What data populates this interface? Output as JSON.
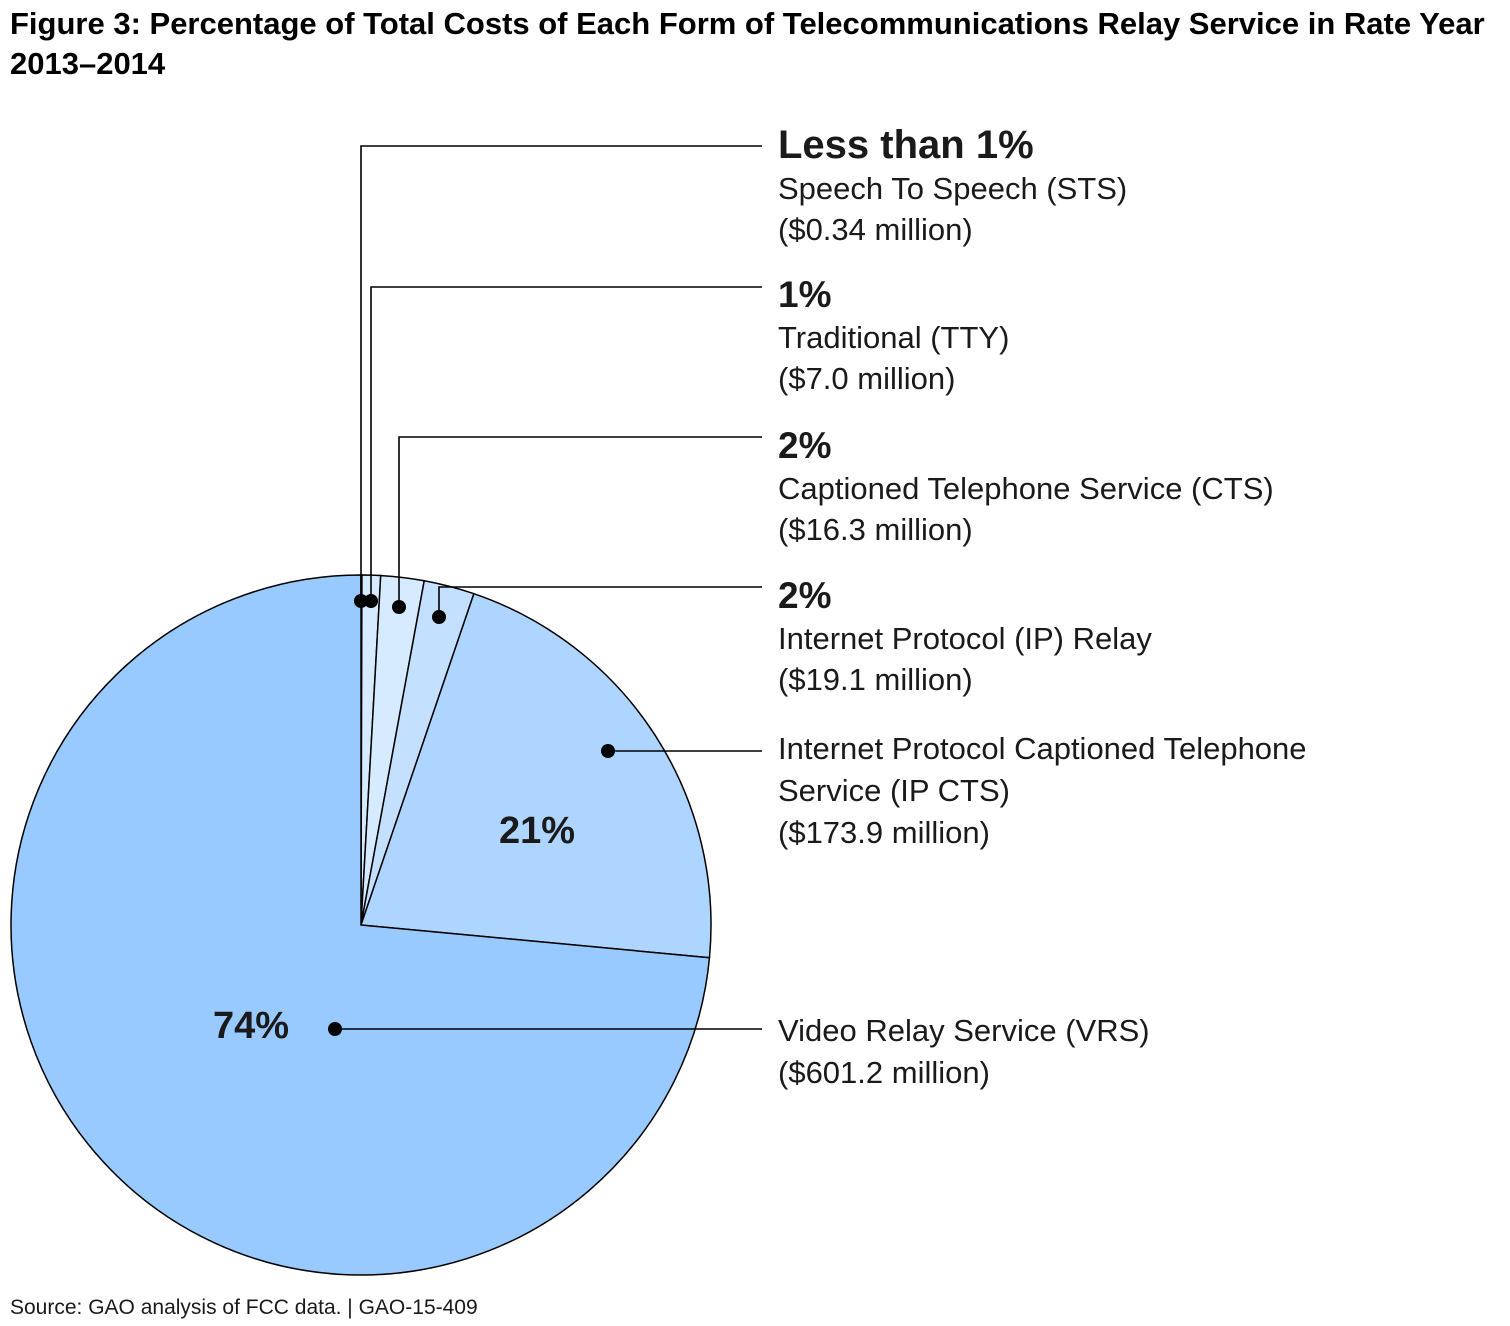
{
  "title": "Figure 3: Percentage of Total Costs of Each Form of Telecommunications Relay Service in Rate Year 2013–2014",
  "source": "Source: GAO analysis of FCC data.  |  GAO-15-409",
  "chart_data": {
    "type": "pie",
    "title": "Figure 3: Percentage of Total Costs of Each Form of Telecommunications Relay Service in Rate Year 2013–2014",
    "start_angle": "12 o'clock, clockwise",
    "slices": [
      {
        "name": "Speech To Speech (STS)",
        "value": 0.34,
        "amount_label": "($0.34 million)",
        "percent_label": "Less than 1%",
        "color": "#d6ebff"
      },
      {
        "name": "Traditional (TTY)",
        "value": 7.0,
        "amount_label": "($7.0 million)",
        "percent_label": "1%",
        "color": "#d6ebff"
      },
      {
        "name": "Captioned Telephone Service (CTS)",
        "value": 16.3,
        "amount_label": "($16.3 million)",
        "percent_label": "2%",
        "color": "#d6ebff"
      },
      {
        "name": "Internet Protocol (IP) Relay",
        "value": 19.1,
        "amount_label": "($19.1 million)",
        "percent_label": "2%",
        "color": "#c3e0ff"
      },
      {
        "name": "Internet Protocol Captioned Telephone Service (IP CTS)",
        "value": 173.9,
        "amount_label": "($173.9 million)",
        "percent_label": "21%",
        "color": "#aed5ff"
      },
      {
        "name": "Video Relay Service (VRS)",
        "value": 601.2,
        "amount_label": "($601.2 million)",
        "percent_label": "74%",
        "color": "#99caff"
      }
    ]
  }
}
